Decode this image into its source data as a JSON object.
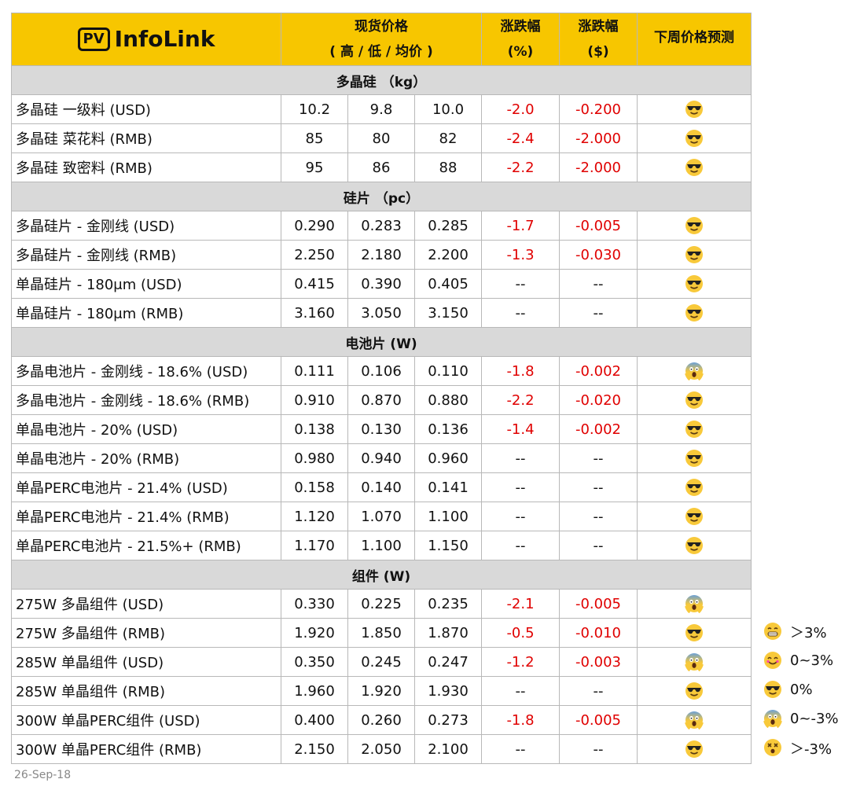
{
  "header": {
    "logo_badge": "PV",
    "logo": "InfoLink",
    "price": "现货价格",
    "price_sub": "( 高 / 低 / 均价 )",
    "change_pct": "涨跌幅",
    "change_pct_unit": "(%)",
    "change_abs": "涨跌幅",
    "change_abs_unit": "($)",
    "forecast": "下周价格预测"
  },
  "sections": [
    {
      "title": "多晶硅 （kg）",
      "rows": [
        {
          "item": "多晶硅 一级料 (USD)",
          "high": "10.2",
          "low": "9.8",
          "avg": "10.0",
          "pct": "-2.0",
          "abs": "-0.200",
          "forecast": "0%"
        },
        {
          "item": "多晶硅 菜花料 (RMB)",
          "high": "85",
          "low": "80",
          "avg": "82",
          "pct": "-2.4",
          "abs": "-2.000",
          "forecast": "0%"
        },
        {
          "item": "多晶硅 致密料 (RMB)",
          "high": "95",
          "low": "86",
          "avg": "88",
          "pct": "-2.2",
          "abs": "-2.000",
          "forecast": "0%"
        }
      ]
    },
    {
      "title": "硅片 （pc）",
      "rows": [
        {
          "item": "多晶硅片 - 金刚线 (USD)",
          "high": "0.290",
          "low": "0.283",
          "avg": "0.285",
          "pct": "-1.7",
          "abs": "-0.005",
          "forecast": "0%"
        },
        {
          "item": "多晶硅片 - 金刚线 (RMB)",
          "high": "2.250",
          "low": "2.180",
          "avg": "2.200",
          "pct": "-1.3",
          "abs": "-0.030",
          "forecast": "0%"
        },
        {
          "item": "单晶硅片 - 180μm (USD)",
          "high": "0.415",
          "low": "0.390",
          "avg": "0.405",
          "pct": "--",
          "abs": "--",
          "forecast": "0%"
        },
        {
          "item": "单晶硅片 - 180μm (RMB)",
          "high": "3.160",
          "low": "3.050",
          "avg": "3.150",
          "pct": "--",
          "abs": "--",
          "forecast": "0%"
        }
      ]
    },
    {
      "title": "电池片 (W)",
      "rows": [
        {
          "item": "多晶电池片 - 金刚线 - 18.6% (USD)",
          "high": "0.111",
          "low": "0.106",
          "avg": "0.110",
          "pct": "-1.8",
          "abs": "-0.002",
          "forecast": "0~-3%"
        },
        {
          "item": "多晶电池片 - 金刚线 - 18.6% (RMB)",
          "high": "0.910",
          "low": "0.870",
          "avg": "0.880",
          "pct": "-2.2",
          "abs": "-0.020",
          "forecast": "0%"
        },
        {
          "item": "单晶电池片 - 20% (USD)",
          "high": "0.138",
          "low": "0.130",
          "avg": "0.136",
          "pct": "-1.4",
          "abs": "-0.002",
          "forecast": "0%"
        },
        {
          "item": "单晶电池片 - 20% (RMB)",
          "high": "0.980",
          "low": "0.940",
          "avg": "0.960",
          "pct": "--",
          "abs": "--",
          "forecast": "0%"
        },
        {
          "item": "单晶PERC电池片 - 21.4% (USD)",
          "high": "0.158",
          "low": "0.140",
          "avg": "0.141",
          "pct": "--",
          "abs": "--",
          "forecast": "0%"
        },
        {
          "item": "单晶PERC电池片 - 21.4% (RMB)",
          "high": "1.120",
          "low": "1.070",
          "avg": "1.100",
          "pct": "--",
          "abs": "--",
          "forecast": "0%"
        },
        {
          "item": "单晶PERC电池片 - 21.5%+ (RMB)",
          "high": "1.170",
          "low": "1.100",
          "avg": "1.150",
          "pct": "--",
          "abs": "--",
          "forecast": "0%"
        }
      ]
    },
    {
      "title": "组件 (W)",
      "rows": [
        {
          "item": "275W 多晶组件 (USD)",
          "high": "0.330",
          "low": "0.225",
          "avg": "0.235",
          "pct": "-2.1",
          "abs": "-0.005",
          "forecast": "0~-3%"
        },
        {
          "item": "275W 多晶组件 (RMB)",
          "high": "1.920",
          "low": "1.850",
          "avg": "1.870",
          "pct": "-0.5",
          "abs": "-0.010",
          "forecast": "0%"
        },
        {
          "item": "285W 单晶组件 (USD)",
          "high": "0.350",
          "low": "0.245",
          "avg": "0.247",
          "pct": "-1.2",
          "abs": "-0.003",
          "forecast": "0~-3%"
        },
        {
          "item": "285W 单晶组件 (RMB)",
          "high": "1.960",
          "low": "1.920",
          "avg": "1.930",
          "pct": "--",
          "abs": "--",
          "forecast": "0%"
        },
        {
          "item": "300W 单晶PERC组件 (USD)",
          "high": "0.400",
          "low": "0.260",
          "avg": "0.273",
          "pct": "-1.8",
          "abs": "-0.005",
          "forecast": "0~-3%"
        },
        {
          "item": "300W 单晶PERC组件 (RMB)",
          "high": "2.150",
          "low": "2.050",
          "avg": "2.100",
          "pct": "--",
          "abs": "--",
          "forecast": "0%"
        }
      ]
    }
  ],
  "legend": [
    {
      "label": "＞3%"
    },
    {
      "label": "0~3%"
    },
    {
      "label": "0%"
    },
    {
      "label": "0~-3%"
    },
    {
      "label": "＞-3%"
    }
  ],
  "date": "26-Sep-18"
}
